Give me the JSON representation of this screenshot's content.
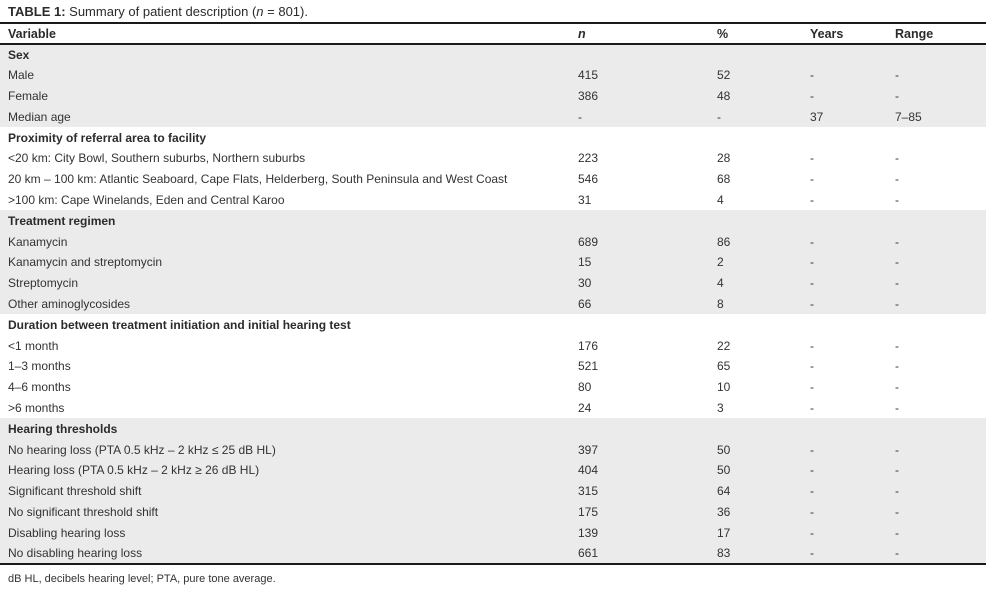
{
  "title": {
    "label": "TABLE 1:",
    "pre": " Summary of patient description (",
    "n_symbol": "n",
    "post": " = 801)."
  },
  "table": {
    "columns": [
      "Variable",
      "n",
      "%",
      "Years",
      "Range"
    ],
    "sections": [
      {
        "shaded": true,
        "header": "Sex",
        "rows": [
          {
            "variable": "Male",
            "n": "415",
            "pct": "52",
            "years": "-",
            "range": "-"
          },
          {
            "variable": "Female",
            "n": "386",
            "pct": "48",
            "years": "-",
            "range": "-"
          },
          {
            "variable": "Median age",
            "n": "-",
            "pct": "-",
            "years": "37",
            "range": "7–85"
          }
        ]
      },
      {
        "shaded": false,
        "header": "Proximity of referral area to facility",
        "rows": [
          {
            "variable": "<20 km: City Bowl, Southern suburbs, Northern suburbs",
            "n": "223",
            "pct": "28",
            "years": "-",
            "range": "-"
          },
          {
            "variable": "20 km – 100 km: Atlantic Seaboard, Cape Flats, Helderberg, South Peninsula and West Coast",
            "n": "546",
            "pct": "68",
            "years": "-",
            "range": "-"
          },
          {
            "variable": ">100 km: Cape Winelands, Eden and Central Karoo",
            "n": "31",
            "pct": "4",
            "years": "-",
            "range": "-"
          }
        ]
      },
      {
        "shaded": true,
        "header": "Treatment regimen",
        "rows": [
          {
            "variable": "Kanamycin",
            "n": "689",
            "pct": "86",
            "years": "-",
            "range": "-"
          },
          {
            "variable": "Kanamycin and streptomycin",
            "n": "15",
            "pct": "2",
            "years": "-",
            "range": "-"
          },
          {
            "variable": "Streptomycin",
            "n": "30",
            "pct": "4",
            "years": "-",
            "range": "-"
          },
          {
            "variable": "Other aminoglycosides",
            "n": "66",
            "pct": "8",
            "years": "-",
            "range": "-"
          }
        ]
      },
      {
        "shaded": false,
        "header": "Duration between treatment initiation and initial hearing test",
        "rows": [
          {
            "variable": "<1 month",
            "n": "176",
            "pct": "22",
            "years": "-",
            "range": "-"
          },
          {
            "variable": "1–3 months",
            "n": "521",
            "pct": "65",
            "years": "-",
            "range": "-"
          },
          {
            "variable": "4–6 months",
            "n": "80",
            "pct": "10",
            "years": "-",
            "range": "-"
          },
          {
            "variable": ">6 months",
            "n": "24",
            "pct": "3",
            "years": "-",
            "range": "-"
          }
        ]
      },
      {
        "shaded": true,
        "header": "Hearing thresholds",
        "rows": [
          {
            "variable": "No hearing loss (PTA 0.5 kHz – 2 kHz ≤ 25 dB HL)",
            "n": "397",
            "pct": "50",
            "years": "-",
            "range": "-"
          },
          {
            "variable": "Hearing loss (PTA 0.5 kHz – 2 kHz ≥ 26 dB HL)",
            "n": "404",
            "pct": "50",
            "years": "-",
            "range": "-"
          },
          {
            "variable": "Significant threshold shift",
            "n": "315",
            "pct": "64",
            "years": "-",
            "range": "-"
          },
          {
            "variable": "No significant threshold shift",
            "n": "175",
            "pct": "36",
            "years": "-",
            "range": "-"
          },
          {
            "variable": "Disabling hearing loss",
            "n": "139",
            "pct": "17",
            "years": "-",
            "range": "-"
          },
          {
            "variable": "No disabling hearing loss",
            "n": "661",
            "pct": "83",
            "years": "-",
            "range": "-"
          }
        ]
      }
    ]
  },
  "footnote": "dB HL, decibels hearing level; PTA, pure tone average.",
  "colors": {
    "shaded_row": "#ebebeb",
    "rule": "#1a1a1a",
    "text": "#333333"
  }
}
